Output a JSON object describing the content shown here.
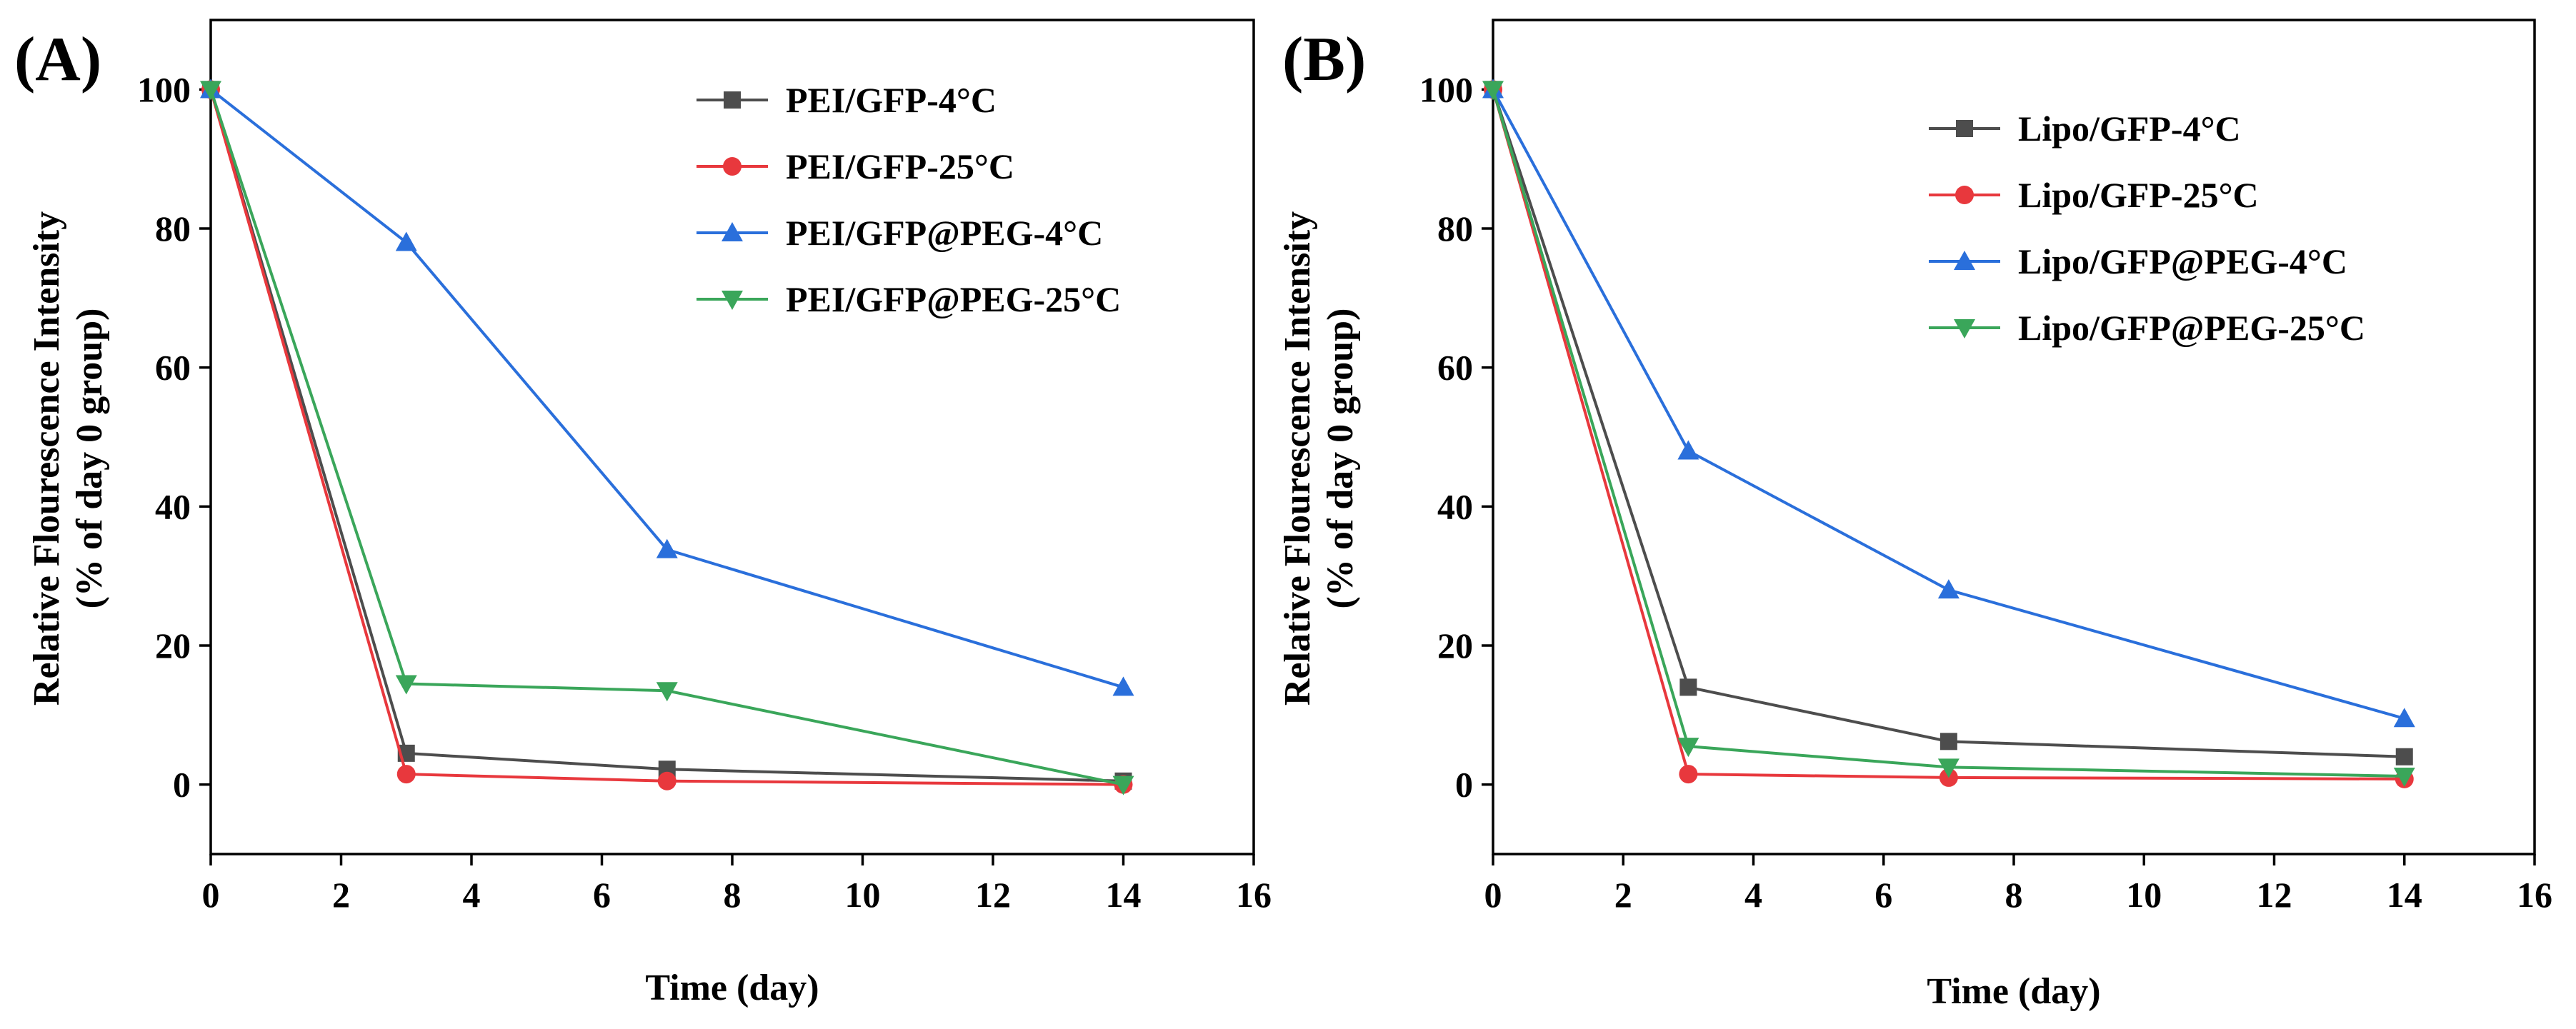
{
  "chart_data": [
    {
      "type": "line",
      "panel_label": "(A)",
      "xlabel": "Time (day)",
      "ylabel_line1": "Relative Flourescence Intensity",
      "ylabel_line2": "(% of day 0 group)",
      "xlim": [
        0,
        16
      ],
      "ylim": [
        -10,
        110
      ],
      "xticks": [
        0,
        2,
        4,
        6,
        8,
        10,
        12,
        14,
        16
      ],
      "yticks": [
        0,
        20,
        40,
        60,
        80,
        100
      ],
      "grid": false,
      "legend_position": "top-right",
      "x": [
        0,
        3,
        7,
        14
      ],
      "series": [
        {
          "name": "PEI/GFP-4°C",
          "color": "#4d4d4d",
          "marker": "square",
          "values": [
            100,
            4.5,
            2.2,
            0.5
          ]
        },
        {
          "name": "PEI/GFP-25°C",
          "color": "#e8383d",
          "marker": "circle",
          "values": [
            100,
            1.5,
            0.5,
            0
          ]
        },
        {
          "name": "PEI/GFP@PEG-4°C",
          "color": "#2a6fdb",
          "marker": "triangle-up",
          "values": [
            100,
            78,
            33.8,
            14
          ]
        },
        {
          "name": "PEI/GFP@PEG-25°C",
          "color": "#3aa65a",
          "marker": "triangle-down",
          "values": [
            100,
            14.5,
            13.5,
            0
          ]
        }
      ]
    },
    {
      "type": "line",
      "panel_label": "(B)",
      "xlabel": "Time (day)",
      "ylabel_line1": "Relative Flourescence Intensity",
      "ylabel_line2": "(% of day 0 group)",
      "xlim": [
        0,
        16
      ],
      "ylim": [
        -10,
        110
      ],
      "xticks": [
        0,
        2,
        4,
        6,
        8,
        10,
        12,
        14,
        16
      ],
      "yticks": [
        0,
        20,
        40,
        60,
        80,
        100
      ],
      "grid": false,
      "legend_position": "top-right",
      "x": [
        0,
        3,
        7,
        14
      ],
      "series": [
        {
          "name": "Lipo/GFP-4°C",
          "color": "#4d4d4d",
          "marker": "square",
          "values": [
            100,
            14,
            6.2,
            4
          ]
        },
        {
          "name": "Lipo/GFP-25°C",
          "color": "#e8383d",
          "marker": "circle",
          "values": [
            100,
            1.5,
            1,
            0.8
          ]
        },
        {
          "name": "Lipo/GFP@PEG-4°C",
          "color": "#2a6fdb",
          "marker": "triangle-up",
          "values": [
            100,
            48,
            28,
            9.5
          ]
        },
        {
          "name": "Lipo/GFP@PEG-25°C",
          "color": "#3aa65a",
          "marker": "triangle-down",
          "values": [
            100,
            5.5,
            2.5,
            1.2
          ]
        }
      ]
    }
  ]
}
